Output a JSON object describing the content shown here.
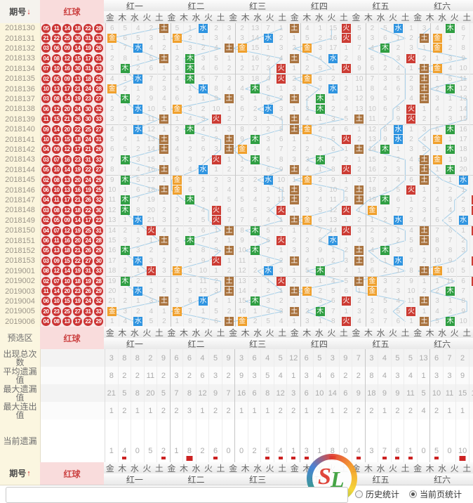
{
  "header": {
    "period_label": "期号",
    "period_sort_arrow": "↓",
    "red_ball_label": "红球",
    "groups": [
      "红一",
      "红二",
      "红三",
      "红四",
      "红五",
      "红六"
    ],
    "elements": [
      "金",
      "木",
      "水",
      "火",
      "土"
    ]
  },
  "colors": {
    "金": "#f0a02c",
    "木": "#2f9e42",
    "水": "#2f94e0",
    "火": "#cc3b33",
    "土": "#aa7440",
    "connector": "#a6cfe8",
    "ball": "#cc3434",
    "mark": "#cc2222"
  },
  "chart": {
    "row1_display": [
      [
        6,
        5,
        4,
        2,
        0
      ],
      [
        5,
        1,
        0,
        2,
        3
      ],
      [
        2,
        13,
        7,
        1,
        0
      ],
      [
        4,
        1,
        15,
        0,
        5
      ],
      [
        2,
        5,
        0,
        1,
        3
      ],
      [
        4,
        0,
        6,
        1,
        2
      ]
    ],
    "rows": [
      {
        "period": "2018130",
        "balls": [
          "05",
          "11",
          "14",
          "18",
          "22",
          "28"
        ],
        "hits": [
          "土",
          "水",
          "土",
          "火",
          "水",
          "木"
        ]
      },
      {
        "period": "2018131",
        "balls": [
          "21",
          "22",
          "25",
          "30",
          "31",
          "33"
        ],
        "hits": [
          "金",
          "金",
          "水",
          "火",
          "土",
          "金"
        ]
      },
      {
        "period": "2018132",
        "balls": [
          "03",
          "06",
          "09",
          "14",
          "19",
          "26"
        ],
        "hits": [
          "水",
          "土",
          "金",
          "金",
          "木",
          "金"
        ]
      },
      {
        "period": "2018133",
        "balls": [
          "04",
          "08",
          "12",
          "15",
          "17",
          "31"
        ],
        "hits": [
          "土",
          "木",
          "土",
          "水",
          "火",
          "土"
        ]
      },
      {
        "period": "2018134",
        "balls": [
          "07",
          "10",
          "16",
          "30",
          "31",
          "33"
        ],
        "hits": [
          "木",
          "木",
          "火",
          "火",
          "土",
          "金"
        ]
      },
      {
        "period": "2018135",
        "balls": [
          "02",
          "05",
          "09",
          "13",
          "18",
          "25"
        ],
        "hits": [
          "水",
          "木",
          "火",
          "金",
          "土",
          "土"
        ]
      },
      {
        "period": "2018136",
        "balls": [
          "10",
          "13",
          "17",
          "21",
          "24",
          "28"
        ],
        "hits": [
          "金",
          "水",
          "木",
          "水",
          "土",
          "木"
        ]
      },
      {
        "period": "2018137",
        "balls": [
          "03",
          "08",
          "14",
          "19",
          "23",
          "27"
        ],
        "hits": [
          "木",
          "土",
          "土",
          "木",
          "土",
          "土"
        ]
      },
      {
        "period": "2018138",
        "balls": [
          "06",
          "12",
          "20",
          "24",
          "30",
          "32"
        ],
        "hits": [
          "水",
          "金",
          "水",
          "木",
          "火",
          "土"
        ]
      },
      {
        "period": "2018139",
        "balls": [
          "11",
          "15",
          "21",
          "26",
          "30",
          "33"
        ],
        "hits": [
          "土",
          "火",
          "土",
          "土",
          "火",
          "土"
        ]
      },
      {
        "period": "2018140",
        "balls": [
          "09",
          "14",
          "20",
          "22",
          "25",
          "27"
        ],
        "hits": [
          "水",
          "木",
          "土",
          "金",
          "水",
          "木"
        ]
      },
      {
        "period": "2018141",
        "balls": [
          "10",
          "13",
          "15",
          "18",
          "24",
          "31"
        ],
        "hits": [
          "土",
          "土",
          "木",
          "火",
          "水",
          "金"
        ]
      },
      {
        "period": "2018142",
        "balls": [
          "04",
          "09",
          "12",
          "17",
          "21",
          "26"
        ],
        "hits": [
          "土",
          "土",
          "金",
          "土",
          "木",
          "木"
        ]
      },
      {
        "period": "2018143",
        "balls": [
          "03",
          "07",
          "16",
          "23",
          "31",
          "33"
        ],
        "hits": [
          "木",
          "火",
          "木",
          "木",
          "土",
          "金"
        ]
      },
      {
        "period": "2018144",
        "balls": [
          "05",
          "10",
          "14",
          "19",
          "22",
          "27"
        ],
        "hits": [
          "土",
          "水",
          "土",
          "火",
          "土",
          "木"
        ]
      },
      {
        "period": "2018145",
        "balls": [
          "02",
          "08",
          "13",
          "20",
          "24",
          "29"
        ],
        "hits": [
          "木",
          "金",
          "水",
          "金",
          "土",
          "水"
        ]
      },
      {
        "period": "2018146",
        "balls": [
          "06",
          "10",
          "13",
          "16",
          "19",
          "25"
        ],
        "hits": [
          "土",
          "金",
          "土",
          "土",
          "火",
          "土"
        ]
      },
      {
        "period": "2018147",
        "balls": [
          "04",
          "11",
          "17",
          "21",
          "26",
          "32"
        ],
        "hits": [
          "木",
          "木",
          "土",
          "土",
          "木",
          "火"
        ]
      },
      {
        "period": "2018148",
        "balls": [
          "03",
          "08",
          "12",
          "18",
          "22",
          "30"
        ],
        "hits": [
          "木",
          "火",
          "火",
          "火",
          "金",
          "火"
        ]
      },
      {
        "period": "2018149",
        "balls": [
          "02",
          "05",
          "09",
          "14",
          "17",
          "23"
        ],
        "hits": [
          "水",
          "火",
          "土",
          "金",
          "水",
          "水"
        ]
      },
      {
        "period": "2018150",
        "balls": [
          "04",
          "07",
          "12",
          "19",
          "25",
          "31"
        ],
        "hits": [
          "火",
          "土",
          "木",
          "火",
          "土",
          "火"
        ]
      },
      {
        "period": "2018151",
        "balls": [
          "06",
          "11",
          "16",
          "20",
          "24",
          "28"
        ],
        "hits": [
          "土",
          "木",
          "火",
          "水",
          "土",
          "土"
        ]
      },
      {
        "period": "2018152",
        "balls": [
          "05",
          "13",
          "18",
          "21",
          "26",
          "29"
        ],
        "hits": [
          "木",
          "土",
          "木",
          "土",
          "木",
          "土"
        ]
      },
      {
        "period": "2018153",
        "balls": [
          "03",
          "09",
          "15",
          "22",
          "27",
          "30"
        ],
        "hits": [
          "水",
          "火",
          "土",
          "土",
          "水",
          "火"
        ]
      },
      {
        "period": "2019001",
        "balls": [
          "08",
          "12",
          "14",
          "19",
          "31",
          "33"
        ],
        "hits": [
          "火",
          "金",
          "水",
          "木",
          "土",
          "金"
        ]
      },
      {
        "period": "2019002",
        "balls": [
          "02",
          "07",
          "10",
          "18",
          "19",
          "28"
        ],
        "hits": [
          "木",
          "土",
          "火",
          "土",
          "金",
          "火"
        ]
      },
      {
        "period": "2019003",
        "balls": [
          "11",
          "14",
          "20",
          "23",
          "26",
          "29"
        ],
        "hits": [
          "水",
          "土",
          "土",
          "金",
          "金",
          "木"
        ]
      },
      {
        "period": "2019004",
        "balls": [
          "06",
          "10",
          "15",
          "19",
          "24",
          "32"
        ],
        "hits": [
          "土",
          "水",
          "木",
          "火",
          "土",
          "土"
        ]
      },
      {
        "period": "2019005",
        "balls": [
          "20",
          "23",
          "25",
          "27",
          "31",
          "33"
        ],
        "hits": [
          "金",
          "金",
          "土",
          "木",
          "火",
          "土"
        ]
      },
      {
        "period": "2019006",
        "balls": [
          "04",
          "08",
          "13",
          "17",
          "22",
          "29"
        ],
        "hits": [
          "水",
          "土",
          "金",
          "火",
          "土",
          "木"
        ]
      }
    ]
  },
  "preselect": {
    "label": "预选区",
    "red_ball_label": "红球"
  },
  "stats": {
    "rows": [
      {
        "label_lines": [
          "出现总次",
          "数"
        ],
        "key": "occurrences",
        "values": [
          3,
          8,
          8,
          2,
          9,
          6,
          6,
          4,
          5,
          9,
          3,
          6,
          4,
          5,
          12,
          6,
          5,
          3,
          9,
          7,
          3,
          4,
          5,
          5,
          13,
          6,
          7,
          2,
          5,
          10
        ]
      },
      {
        "label_lines": [
          "平均遗漏",
          "值"
        ],
        "key": "average_omission",
        "values": [
          8,
          2,
          2,
          11,
          2,
          3,
          2,
          6,
          3,
          2,
          9,
          3,
          5,
          4,
          1,
          3,
          4,
          6,
          2,
          2,
          8,
          4,
          3,
          4,
          1,
          3,
          3,
          9,
          4,
          1
        ]
      },
      {
        "label_lines": [
          "最大遗漏",
          "值"
        ],
        "key": "max_omission",
        "values": [
          21,
          5,
          8,
          20,
          5,
          7,
          8,
          12,
          9,
          7,
          16,
          6,
          8,
          12,
          3,
          6,
          10,
          14,
          6,
          9,
          18,
          9,
          9,
          11,
          5,
          10,
          11,
          15,
          17,
          6
        ]
      },
      {
        "label_lines": [
          "最大连出",
          "值"
        ],
        "key": "max_streak",
        "values": [
          1,
          2,
          1,
          1,
          2,
          2,
          3,
          1,
          2,
          2,
          1,
          1,
          1,
          2,
          2,
          1,
          2,
          1,
          2,
          2,
          2,
          1,
          2,
          2,
          4,
          2,
          1,
          1,
          2,
          3
        ]
      }
    ],
    "current": {
      "label": "当前遗漏",
      "values": [
        1,
        4,
        0,
        5,
        2,
        1,
        8,
        2,
        6,
        0,
        0,
        2,
        5,
        4,
        1,
        3,
        1,
        8,
        0,
        4,
        3,
        7,
        6,
        1,
        0,
        5,
        0,
        10,
        4,
        1
      ],
      "marked_columns": [
        1,
        4,
        6,
        8,
        12,
        13,
        14,
        15,
        17,
        19,
        21,
        22,
        23,
        25,
        27,
        28,
        29
      ]
    }
  },
  "footer": {
    "period_label": "期号",
    "period_sort_arrow": "↑",
    "red_ball_label": "红球",
    "groups": [
      "红一",
      "红二",
      "红三",
      "红四",
      "红五",
      "红六"
    ],
    "elements": [
      "金",
      "木",
      "水",
      "火",
      "土"
    ]
  },
  "legend": [
    {
      "label": "历史统计",
      "selected": false
    },
    {
      "label": "当前页统计",
      "selected": true
    }
  ],
  "watermark_text": "SL"
}
